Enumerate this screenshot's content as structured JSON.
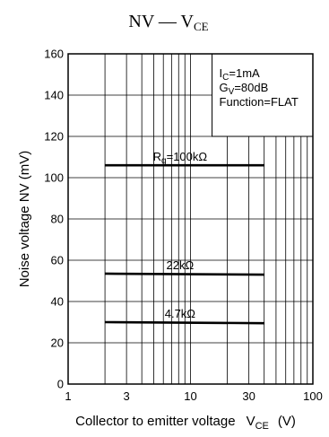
{
  "chart_data": {
    "type": "line",
    "title": {
      "main": "NV — V",
      "sub": "CE"
    },
    "x_axis": {
      "label_main": "Collector to emitter voltage",
      "label_var": "V",
      "label_sub": "CE",
      "label_unit": "(V)",
      "scale": "log",
      "range": [
        1,
        100
      ],
      "ticks": [
        1,
        3,
        10,
        30,
        100
      ],
      "tick_labels": [
        "1",
        "3",
        "10",
        "30",
        "100"
      ]
    },
    "y_axis": {
      "label": "Noise voltage  NV  (mV)",
      "scale": "linear",
      "range": [
        0,
        160
      ],
      "ticks": [
        0,
        20,
        40,
        60,
        80,
        100,
        120,
        140,
        160
      ],
      "tick_labels": [
        "0",
        "20",
        "40",
        "60",
        "80",
        "100",
        "120",
        "140",
        "160"
      ]
    },
    "grid": true,
    "conditions": [
      {
        "main": "I",
        "sub": "C",
        "rest": "=1mA"
      },
      {
        "main": "G",
        "sub": "V",
        "rest": "=80dB"
      },
      {
        "main": "Function=FLAT",
        "sub": "",
        "rest": ""
      }
    ],
    "series": [
      {
        "label_main": "R",
        "label_sub": "g",
        "label_rest": "=100kΩ",
        "x": [
          2,
          40
        ],
        "y": [
          106,
          106
        ]
      },
      {
        "label_main": "22kΩ",
        "label_sub": "",
        "label_rest": "",
        "x": [
          2,
          40
        ],
        "y": [
          53.5,
          53
        ]
      },
      {
        "label_main": "4.7kΩ",
        "label_sub": "",
        "label_rest": "",
        "x": [
          2,
          40
        ],
        "y": [
          30,
          29.5
        ]
      }
    ]
  }
}
